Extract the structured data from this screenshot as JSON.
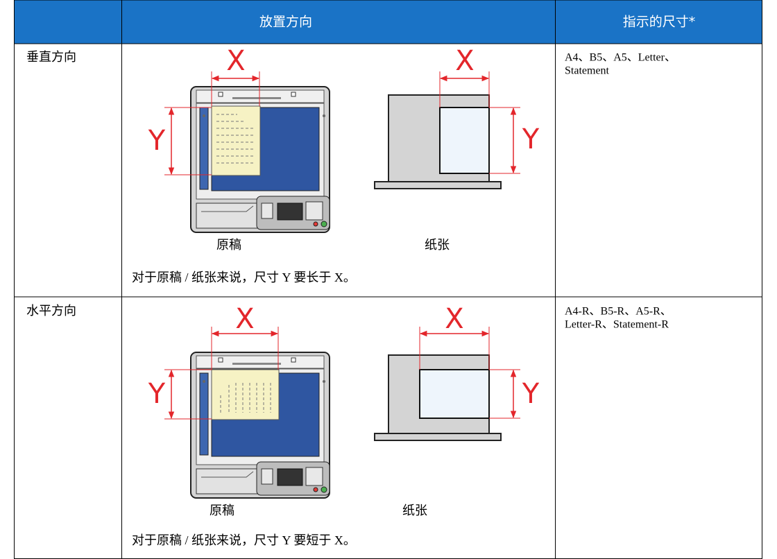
{
  "header": [
    "放置方向",
    "指示的尺寸*"
  ],
  "rows": [
    {
      "label": "垂直方向",
      "diagrams": [
        {
          "caption": "原稿",
          "x_label": "X",
          "y_label": "Y"
        },
        {
          "caption": "纸张",
          "x_label": "X",
          "y_label": "Y"
        }
      ],
      "note": "对于原稿 / 纸张来说，尺寸 Y 要长于 X。",
      "sizes": [
        "A4、B5、A5、Letter、",
        "Statement"
      ]
    },
    {
      "label": "水平方向",
      "diagrams": [
        {
          "caption": "原稿",
          "x_label": "X",
          "y_label": "Y"
        },
        {
          "caption": "纸张",
          "x_label": "X",
          "y_label": "Y"
        }
      ],
      "note": "对于原稿 / 纸张来说，尺寸 Y 要短于 X。",
      "sizes": [
        "A4-R、B5-R、A5-R、",
        "Letter-R、Statement-R"
      ]
    }
  ]
}
